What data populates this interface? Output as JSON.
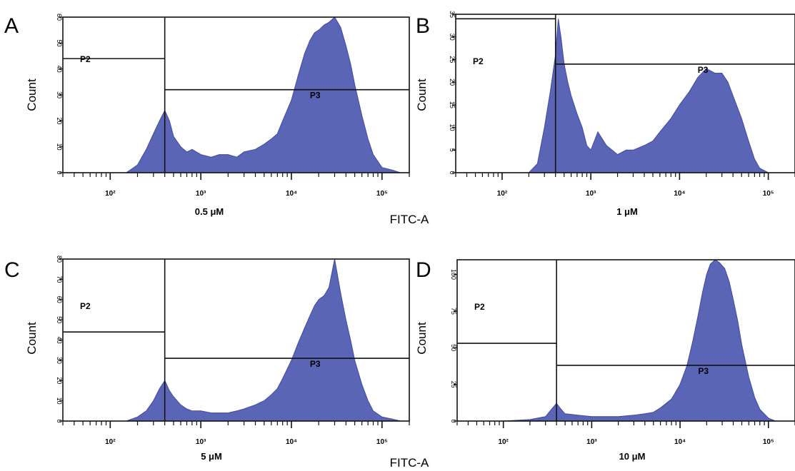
{
  "colors": {
    "histogram_fill": "#5b65b5",
    "histogram_edge": "#3f4aa3",
    "frame": "#111111",
    "gate_line": "#111111"
  },
  "x_axis_title": "FITC-A",
  "chart_data": [
    {
      "type": "area",
      "panel": "A",
      "condition": "0.5 μM",
      "ylabel": "Count",
      "xscale": "log",
      "xlim": [
        30,
        200000
      ],
      "x_ticks": [
        {
          "value": 100,
          "label": "10²"
        },
        {
          "value": 1000,
          "label": "10³"
        },
        {
          "value": 10000,
          "label": "10⁴"
        },
        {
          "value": 100000,
          "label": "10⁵"
        }
      ],
      "ylim": [
        0,
        60
      ],
      "y_ticks": [
        0,
        10,
        20,
        30,
        40,
        50,
        60
      ],
      "gate_threshold": 400,
      "gates": [
        {
          "label": "P2",
          "x_range": [
            30,
            400
          ],
          "y_level": 44
        },
        {
          "label": "P3",
          "x_range": [
            400,
            200000
          ],
          "y_level": 32
        }
      ],
      "x": [
        150,
        200,
        250,
        300,
        350,
        400,
        450,
        500,
        600,
        700,
        800,
        1000,
        1300,
        1600,
        2000,
        2500,
        3000,
        4000,
        5000,
        6000,
        7000,
        8000,
        10000,
        12000,
        14000,
        16000,
        18000,
        20000,
        23000,
        26000,
        30000,
        35000,
        40000,
        45000,
        50000,
        60000,
        70000,
        80000,
        100000,
        130000,
        160000
      ],
      "values": [
        0,
        3,
        9,
        15,
        20,
        24,
        20,
        14,
        10,
        8,
        9,
        7,
        6,
        7,
        7,
        6,
        8,
        9,
        11,
        13,
        15,
        20,
        28,
        38,
        46,
        51,
        54,
        55,
        57,
        58,
        60,
        56,
        49,
        42,
        34,
        22,
        13,
        7,
        2,
        1,
        0
      ]
    },
    {
      "type": "area",
      "panel": "B",
      "condition": "1 μM",
      "ylabel": "Count",
      "xscale": "log",
      "xlim": [
        30,
        200000
      ],
      "x_ticks": [
        {
          "value": 100,
          "label": "10²"
        },
        {
          "value": 1000,
          "label": "10³"
        },
        {
          "value": 10000,
          "label": "10⁴"
        },
        {
          "value": 100000,
          "label": "10⁵"
        }
      ],
      "ylim": [
        0,
        35
      ],
      "y_ticks": [
        0,
        5,
        10,
        15,
        20,
        25,
        30,
        35
      ],
      "gate_threshold": 400,
      "gates": [
        {
          "label": "P2",
          "x_range": [
            30,
            400
          ],
          "y_level": 34
        },
        {
          "label": "P3",
          "x_range": [
            400,
            200000
          ],
          "y_level": 24
        }
      ],
      "x": [
        200,
        250,
        300,
        350,
        400,
        430,
        460,
        500,
        550,
        600,
        700,
        800,
        900,
        1000,
        1200,
        1500,
        2000,
        2500,
        3000,
        4000,
        5000,
        6000,
        8000,
        10000,
        13000,
        16000,
        20000,
        25000,
        30000,
        35000,
        40000,
        50000,
        60000,
        70000,
        80000,
        100000
      ],
      "values": [
        0,
        2,
        10,
        18,
        26,
        34,
        30,
        24,
        20,
        17,
        13,
        10,
        6,
        5,
        9,
        6,
        4,
        5,
        5,
        6,
        7,
        9,
        12,
        15,
        18,
        21,
        23,
        22,
        22,
        20,
        17,
        12,
        7,
        3,
        1,
        0
      ]
    },
    {
      "type": "area",
      "panel": "C",
      "condition": "5 μM",
      "ylabel": "Count",
      "xscale": "log",
      "xlim": [
        30,
        200000
      ],
      "x_ticks": [
        {
          "value": 100,
          "label": "10²"
        },
        {
          "value": 1000,
          "label": "10³"
        },
        {
          "value": 10000,
          "label": "10⁴"
        },
        {
          "value": 100000,
          "label": "10⁵"
        }
      ],
      "ylim": [
        0,
        80
      ],
      "y_ticks": [
        0,
        10,
        20,
        30,
        40,
        50,
        60,
        70,
        80
      ],
      "gate_threshold": 400,
      "gates": [
        {
          "label": "P2",
          "x_range": [
            30,
            400
          ],
          "y_level": 44
        },
        {
          "label": "P3",
          "x_range": [
            400,
            200000
          ],
          "y_level": 31
        }
      ],
      "x": [
        150,
        200,
        250,
        300,
        350,
        400,
        450,
        500,
        600,
        700,
        800,
        1000,
        1300,
        1600,
        2000,
        2500,
        3000,
        4000,
        5000,
        6000,
        7000,
        8000,
        10000,
        12000,
        14000,
        16000,
        18000,
        20000,
        23000,
        26000,
        30000,
        35000,
        40000,
        45000,
        50000,
        60000,
        70000,
        80000,
        100000,
        130000,
        160000
      ],
      "values": [
        0,
        2,
        5,
        10,
        16,
        20,
        15,
        12,
        8,
        6,
        5,
        5,
        4,
        4,
        4,
        5,
        6,
        8,
        10,
        13,
        16,
        21,
        30,
        39,
        46,
        52,
        57,
        60,
        62,
        66,
        80,
        63,
        50,
        40,
        30,
        18,
        10,
        5,
        2,
        1,
        0
      ]
    },
    {
      "type": "area",
      "panel": "D",
      "condition": "10 μM",
      "ylabel": "Count",
      "xscale": "log",
      "xlim": [
        30,
        200000
      ],
      "x_ticks": [
        {
          "value": 100,
          "label": "10²"
        },
        {
          "value": 1000,
          "label": "10³"
        },
        {
          "value": 10000,
          "label": "10⁴"
        },
        {
          "value": 100000,
          "label": "10⁵"
        }
      ],
      "ylim": [
        0,
        110
      ],
      "y_ticks": [
        0,
        25,
        50,
        75,
        100
      ],
      "gate_threshold": 400,
      "gates": [
        {
          "label": "P2",
          "x_range": [
            30,
            400
          ],
          "y_level": 53
        },
        {
          "label": "P3",
          "x_range": [
            400,
            200000
          ],
          "y_level": 38
        }
      ],
      "x": [
        100,
        200,
        300,
        350,
        400,
        450,
        500,
        700,
        1000,
        1500,
        2000,
        3000,
        4000,
        5000,
        6000,
        8000,
        10000,
        12000,
        14000,
        16000,
        18000,
        20000,
        22000,
        25000,
        28000,
        32000,
        36000,
        40000,
        45000,
        50000,
        60000,
        70000,
        80000,
        100000,
        120000
      ],
      "values": [
        0,
        1,
        3,
        8,
        12,
        8,
        5,
        4,
        3,
        3,
        3,
        4,
        5,
        6,
        9,
        15,
        25,
        38,
        55,
        72,
        88,
        100,
        107,
        110,
        108,
        104,
        95,
        83,
        68,
        52,
        30,
        16,
        8,
        2,
        0
      ]
    }
  ]
}
